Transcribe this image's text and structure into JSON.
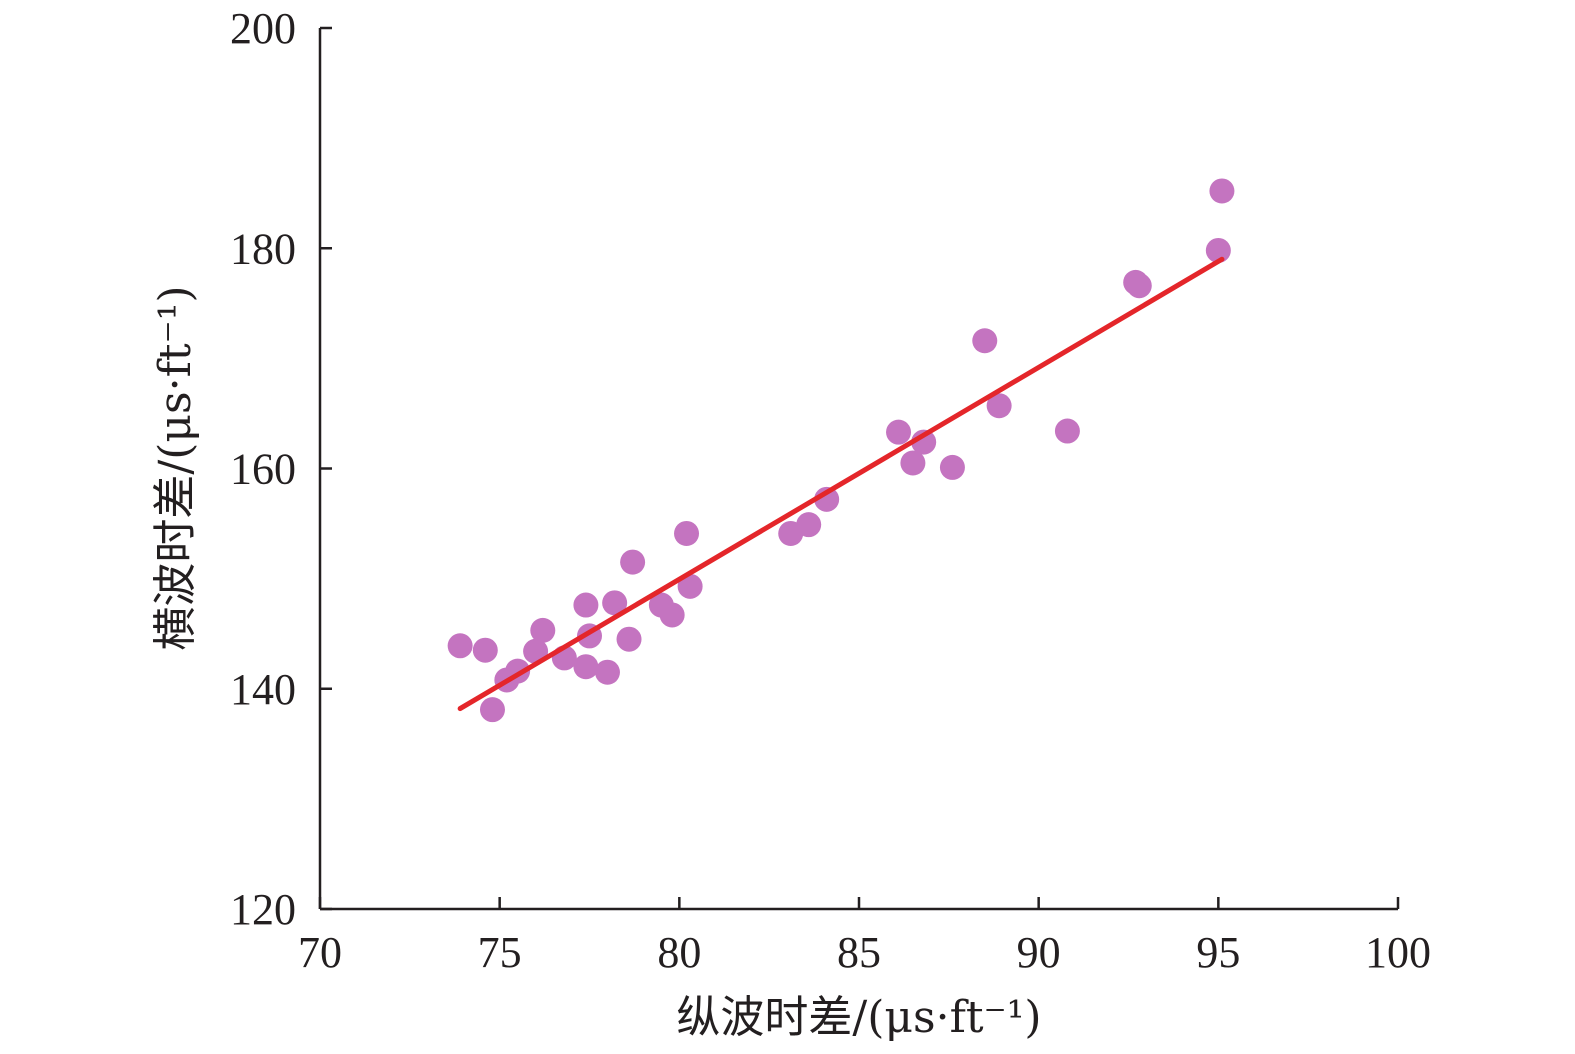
{
  "chart_data": {
    "type": "scatter",
    "xlabel": "纵波时差/(μs·ft⁻¹)",
    "ylabel": "横波时差/(μs·ft⁻¹)",
    "xlim": [
      70,
      100
    ],
    "ylim": [
      120,
      200
    ],
    "x_ticks": [
      70,
      75,
      80,
      85,
      90,
      95,
      100
    ],
    "y_ticks": [
      120,
      140,
      160,
      180,
      200
    ],
    "grid": false,
    "legend": "none",
    "series": [
      {
        "type": "scatter",
        "color": "#c474c0",
        "points": [
          [
            73.9,
            143.9
          ],
          [
            74.6,
            143.5
          ],
          [
            74.8,
            138.1
          ],
          [
            75.2,
            140.8
          ],
          [
            75.5,
            141.6
          ],
          [
            76.0,
            143.4
          ],
          [
            76.2,
            145.3
          ],
          [
            76.8,
            142.8
          ],
          [
            77.4,
            142.0
          ],
          [
            77.4,
            147.6
          ],
          [
            77.5,
            144.8
          ],
          [
            78.0,
            141.5
          ],
          [
            78.2,
            147.8
          ],
          [
            78.6,
            144.5
          ],
          [
            78.7,
            151.5
          ],
          [
            79.5,
            147.6
          ],
          [
            79.8,
            146.7
          ],
          [
            80.2,
            154.1
          ],
          [
            80.3,
            149.3
          ],
          [
            83.1,
            154.1
          ],
          [
            83.6,
            154.9
          ],
          [
            84.1,
            157.2
          ],
          [
            86.1,
            163.3
          ],
          [
            86.5,
            160.5
          ],
          [
            86.8,
            162.4
          ],
          [
            87.6,
            160.1
          ],
          [
            88.5,
            171.6
          ],
          [
            88.9,
            165.7
          ],
          [
            90.8,
            163.4
          ],
          [
            92.7,
            176.9
          ],
          [
            92.8,
            176.6
          ],
          [
            95.0,
            179.8
          ],
          [
            95.1,
            185.2
          ]
        ]
      },
      {
        "type": "line",
        "color": "#e4262a",
        "points": [
          [
            73.9,
            138.2
          ],
          [
            95.1,
            179.0
          ]
        ]
      }
    ]
  }
}
